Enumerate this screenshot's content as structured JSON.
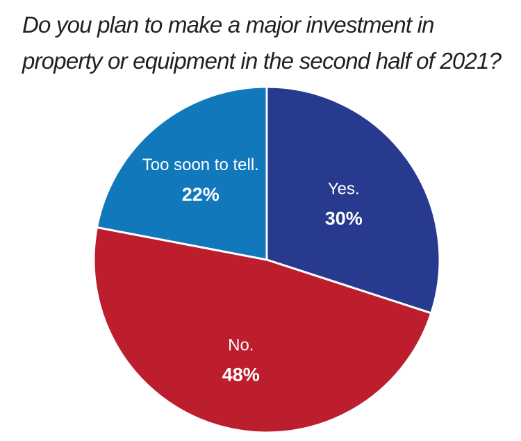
{
  "chart_data": {
    "type": "pie",
    "title": "Do you plan to make a major investment in property or equipment in the second half of 2021?",
    "slices": [
      {
        "label": "Yes.",
        "value": 30,
        "value_label": "30%",
        "color": "#283a8e"
      },
      {
        "label": "No.",
        "value": 48,
        "value_label": "48%",
        "color": "#bd1e2d"
      },
      {
        "label": "Too soon to tell.",
        "value": 22,
        "value_label": "22%",
        "color": "#1278bc"
      }
    ],
    "start_angle_deg": 0,
    "direction": "clockwise",
    "legend": "none"
  }
}
